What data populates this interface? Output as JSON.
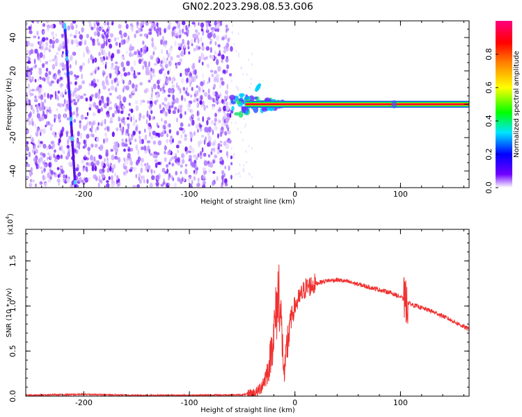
{
  "title": "GN02.2023.298.08.53.G06",
  "chart_data": [
    {
      "type": "heatmap",
      "xlabel": "Height of straight line (km)",
      "ylabel": "Frequency (Hz)",
      "xlim": [
        -255,
        165
      ],
      "ylim": [
        -50,
        50
      ],
      "x_ticks": [
        -200,
        -100,
        0,
        100
      ],
      "y_ticks": [
        -40,
        -20,
        0,
        20,
        40
      ],
      "x_tick_labels": [
        "-200",
        "-100",
        "0",
        "100"
      ],
      "y_tick_labels": [
        "-40",
        "-20",
        "0",
        "20",
        "40"
      ],
      "colorbar": {
        "label": "Normalized spectral amplitude",
        "ticks": [
          0.0,
          0.2,
          0.4,
          0.6,
          0.8
        ],
        "tick_labels": [
          "0.0",
          "0.2",
          "0.4",
          "0.6",
          "0.8"
        ],
        "range": [
          0,
          1
        ],
        "colormap": [
          "#ffffff",
          "#7000ff",
          "#0000ff",
          "#00e5ff",
          "#00ff00",
          "#ffff00",
          "#ff8000",
          "#ff0000",
          "#ff0080"
        ]
      },
      "features": {
        "noise_region_x": [
          -255,
          -60
        ],
        "carrier_frequency": 0,
        "carrier_start_x": -60,
        "diagonal_trace": {
          "x": [
            -218,
            -208
          ],
          "y": [
            48,
            -50
          ]
        }
      }
    },
    {
      "type": "line",
      "xlabel": "Height of straight line (km)",
      "ylabel": "SNR (10 * v/v)",
      "y_scale_label": "(x10",
      "y_scale_exp": "4",
      "y_scale_close": ")",
      "xlim": [
        -255,
        165
      ],
      "ylim": [
        0,
        1.85
      ],
      "x_ticks": [
        -200,
        -100,
        0,
        100
      ],
      "y_ticks": [
        0.0,
        0.5,
        1.0,
        1.5
      ],
      "x_tick_labels": [
        "-200",
        "-100",
        "0",
        "100"
      ],
      "y_tick_labels": [
        "0.0",
        "0.5",
        "1.0",
        "1.5"
      ],
      "line_color": "#f03030",
      "series": [
        {
          "x": [
            -255,
            -200,
            -150,
            -100,
            -50,
            -40,
            -35,
            -30,
            -25,
            -20,
            -18,
            -15,
            -12,
            -10,
            -8,
            -5,
            0,
            5,
            10,
            20,
            30,
            40,
            50,
            60,
            70,
            80,
            90,
            100,
            105,
            110,
            120,
            130,
            140,
            150,
            160,
            165
          ],
          "y": [
            0.01,
            0.02,
            0.01,
            0.01,
            0.015,
            0.03,
            0.05,
            0.15,
            0.3,
            0.7,
            0.9,
            1.2,
            0.6,
            0.2,
            0.5,
            0.8,
            1.0,
            1.1,
            1.2,
            1.25,
            1.28,
            1.29,
            1.27,
            1.24,
            1.21,
            1.18,
            1.15,
            1.1,
            1.05,
            1.02,
            0.98,
            0.94,
            0.89,
            0.83,
            0.77,
            0.74
          ]
        }
      ]
    }
  ]
}
